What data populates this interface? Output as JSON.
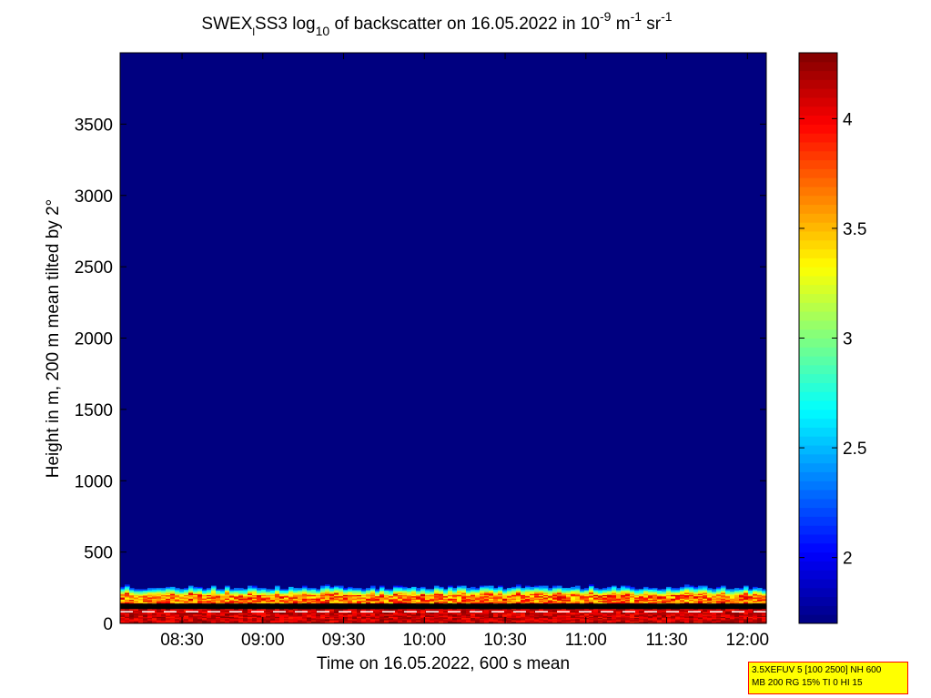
{
  "chart_data": {
    "type": "heatmap",
    "title_parts": {
      "prefix": "SWEX",
      "subscript_l": "l",
      "name": "SS3 log",
      "log_base": "10",
      "middle": " of backscatter on 16.05.2022 in 10",
      "exp_9": "-9",
      "unit_m": " m",
      "exp_m": "-1",
      "unit_sr": " sr",
      "exp_sr": "-1"
    },
    "xlabel": "Time on 16.05.2022, 600 s mean",
    "ylabel": "Height in m, 200 m mean tilted by 2°",
    "x_ticks": [
      "08:30",
      "09:00",
      "09:30",
      "10:00",
      "10:30",
      "11:00",
      "11:30",
      "12:00"
    ],
    "y_ticks": [
      "0",
      "500",
      "1000",
      "1500",
      "2000",
      "2500",
      "3000",
      "3500"
    ],
    "xlim": [
      "08:07",
      "12:07"
    ],
    "ylim": [
      0,
      4000
    ],
    "colorbar": {
      "ticks": [
        "2",
        "2.5",
        "3",
        "3.5",
        "4"
      ],
      "range": [
        1.7,
        4.3
      ],
      "colormap": "jet"
    },
    "background_value": 1.7,
    "aerosol_layer_top_m": 250,
    "boundary_line_height_m": 120,
    "colors": {
      "background": "#00008f",
      "line": "#000000"
    }
  },
  "info_box": {
    "line1": "3.5XEFUV 5 [100 2500] NH 600",
    "line2": "MB 200 RG 15% TI 0 HI 15"
  }
}
